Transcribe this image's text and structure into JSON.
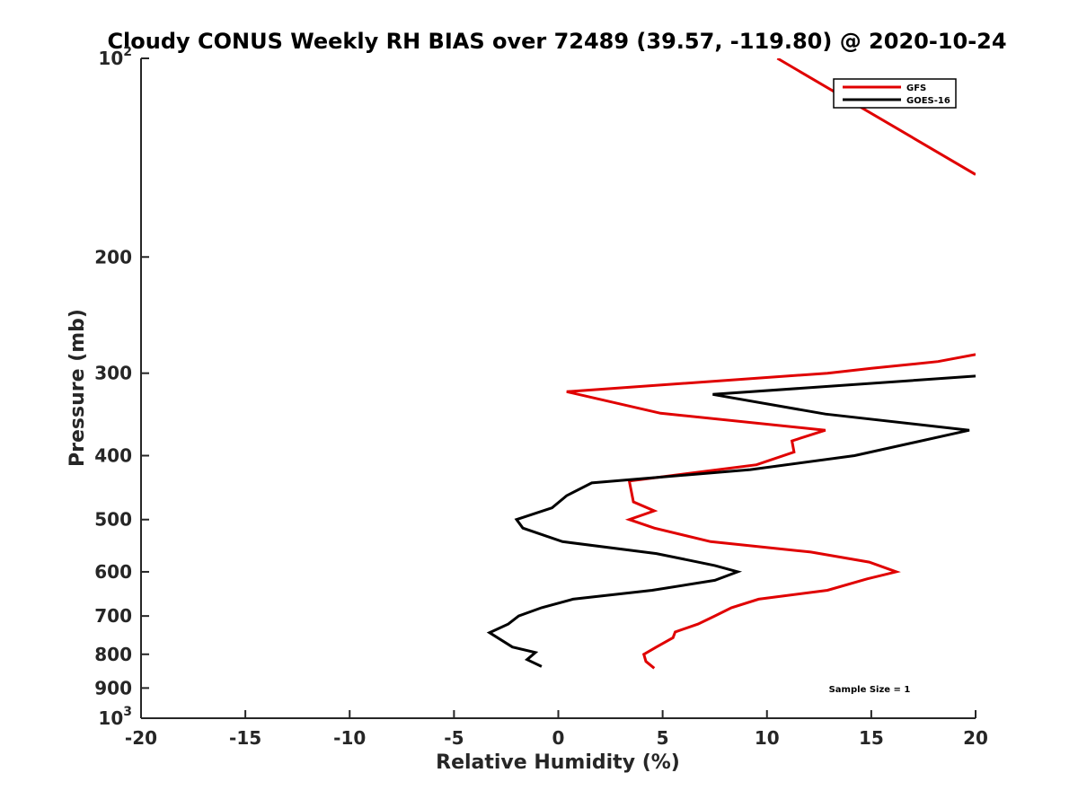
{
  "chart_data": {
    "type": "line",
    "title": "Cloudy CONUS Weekly RH BIAS over 72489 (39.57, -119.80) @ 2020-10-24",
    "xlabel": "Relative Humidity (%)",
    "ylabel": "Pressure (mb)",
    "xlim": [
      -20,
      20
    ],
    "ylim": [
      100,
      1000
    ],
    "yscale": "log",
    "y_reversed": true,
    "x_ticks": [
      -20,
      -15,
      -10,
      -5,
      0,
      5,
      10,
      15,
      20
    ],
    "x_tick_labels": [
      "-20",
      "-15",
      "-10",
      "-5",
      "0",
      "5",
      "10",
      "15",
      "20"
    ],
    "y_ticks": [
      100,
      200,
      300,
      400,
      500,
      600,
      700,
      800,
      900,
      1000
    ],
    "y_tick_labels": [
      {
        "base": "10",
        "exp": "2"
      },
      {
        "base": "200",
        "exp": ""
      },
      {
        "base": "300",
        "exp": ""
      },
      {
        "base": "400",
        "exp": ""
      },
      {
        "base": "500",
        "exp": ""
      },
      {
        "base": "600",
        "exp": ""
      },
      {
        "base": "700",
        "exp": ""
      },
      {
        "base": "800",
        "exp": ""
      },
      {
        "base": "900",
        "exp": ""
      },
      {
        "base": "10",
        "exp": "3"
      }
    ],
    "grid": false,
    "legend_position": "top-right",
    "annotation": "Sample Size = 1",
    "series": [
      {
        "name": "GFS",
        "color": "#e00000",
        "points": [
          [
            10.5,
            100
          ],
          [
            20.0,
            150
          ],
          [
            20.0,
            281
          ],
          [
            18.2,
            288
          ],
          [
            15.0,
            295
          ],
          [
            12.9,
            300
          ],
          [
            0.4,
            320
          ],
          [
            4.9,
            345
          ],
          [
            12.8,
            366
          ],
          [
            11.2,
            380
          ],
          [
            11.3,
            395
          ],
          [
            9.5,
            413
          ],
          [
            3.4,
            437
          ],
          [
            3.6,
            470
          ],
          [
            4.6,
            485
          ],
          [
            3.4,
            500
          ],
          [
            4.6,
            515
          ],
          [
            7.3,
            540
          ],
          [
            12.1,
            560
          ],
          [
            14.9,
            580
          ],
          [
            16.2,
            600
          ],
          [
            14.8,
            615
          ],
          [
            12.9,
            640
          ],
          [
            9.6,
            660
          ],
          [
            8.3,
            680
          ],
          [
            7.5,
            700
          ],
          [
            6.7,
            720
          ],
          [
            5.6,
            740
          ],
          [
            5.5,
            755
          ],
          [
            4.7,
            780
          ],
          [
            4.1,
            800
          ],
          [
            4.2,
            820
          ],
          [
            4.6,
            840
          ]
        ]
      },
      {
        "name": "GOES-16",
        "color": "#000000",
        "points": [
          [
            20.0,
            303
          ],
          [
            7.4,
            323
          ],
          [
            12.8,
            346
          ],
          [
            19.7,
            366
          ],
          [
            14.2,
            400
          ],
          [
            9.2,
            420
          ],
          [
            1.6,
            440
          ],
          [
            0.4,
            460
          ],
          [
            -0.3,
            480
          ],
          [
            -2.0,
            500
          ],
          [
            -1.7,
            515
          ],
          [
            0.2,
            540
          ],
          [
            4.7,
            563
          ],
          [
            7.5,
            587
          ],
          [
            8.6,
            600
          ],
          [
            7.5,
            618
          ],
          [
            4.5,
            640
          ],
          [
            0.7,
            660
          ],
          [
            -0.8,
            680
          ],
          [
            -1.9,
            700
          ],
          [
            -2.4,
            720
          ],
          [
            -3.3,
            742
          ],
          [
            -2.2,
            780
          ],
          [
            -1.1,
            795
          ],
          [
            -1.5,
            815
          ],
          [
            -0.8,
            835
          ]
        ]
      }
    ]
  }
}
